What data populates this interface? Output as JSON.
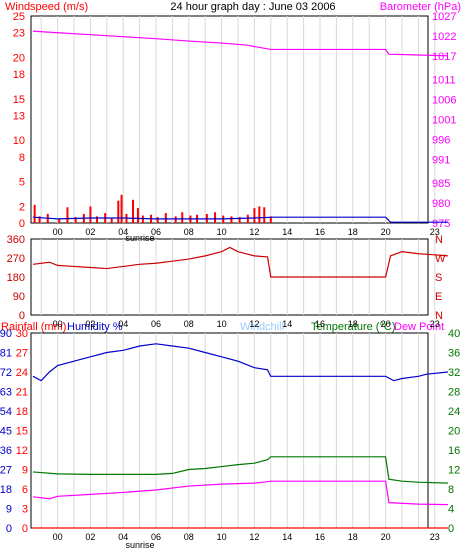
{
  "header": {
    "windspeed_label": "Windspeed (m/s)",
    "title": "24 hour graph day : June 03 2006",
    "barometer_label": "Barometer (hPa)"
  },
  "labels": {
    "sunrise": "sunrise",
    "rainfall": "Rainfall (mm)",
    "humidity": "Humidity %",
    "windchill": "Windchill",
    "temperature": "Temperature (°C)",
    "dewpoint": "Dew Point"
  },
  "colors": {
    "wind": "#ff0000",
    "barometer": "#ff00ff",
    "direction": "#cc0000",
    "humidity": "#0000cc",
    "temperature": "#007700",
    "dewpoint": "#ff00ff",
    "windchill": "#99ccff",
    "rainfall": "#ff0000",
    "grid": "#d8d8d8"
  },
  "chart_data": [
    {
      "type": "line",
      "panel": "wind-barometer",
      "title": "24 hour graph day : June 03 2006",
      "x_ticks": [
        "00",
        "02",
        "04",
        "06",
        "08",
        "10",
        "12",
        "14",
        "16",
        "18",
        "20",
        "23"
      ],
      "y_left": {
        "label": "Windspeed (m/s)",
        "ticks": [
          0,
          2,
          5,
          8,
          10,
          13,
          15,
          18,
          20,
          23,
          25
        ],
        "range": [
          0,
          25
        ]
      },
      "y_right": {
        "label": "Barometer (hPa)",
        "ticks": [
          975,
          980,
          985,
          991,
          996,
          1001,
          1006,
          1011,
          1017,
          1022,
          1027
        ],
        "range": [
          975,
          1027
        ]
      },
      "series": [
        {
          "name": "Barometer (hPa)",
          "axis": "right",
          "points": [
            [
              -1.5,
              1023.2
            ],
            [
              0,
              1022.8
            ],
            [
              2,
              1022.3
            ],
            [
              4,
              1021.8
            ],
            [
              6,
              1021.3
            ],
            [
              8,
              1020.7
            ],
            [
              10,
              1020.2
            ],
            [
              11.5,
              1019.7
            ],
            [
              13,
              1018.6
            ],
            [
              20,
              1018.6
            ],
            [
              20.2,
              1017.4
            ],
            [
              22,
              1017.2
            ],
            [
              23.8,
              1017.0
            ]
          ]
        },
        {
          "name": "Windspeed (m/s)",
          "axis": "left",
          "style": "bars",
          "points": [
            [
              -1.4,
              2.2
            ],
            [
              -1.1,
              0.8
            ],
            [
              -0.6,
              1.1
            ],
            [
              0.1,
              0.5
            ],
            [
              0.6,
              1.9
            ],
            [
              1.1,
              0.7
            ],
            [
              1.6,
              1.1
            ],
            [
              2.0,
              2.0
            ],
            [
              2.4,
              0.8
            ],
            [
              2.9,
              1.2
            ],
            [
              3.3,
              0.6
            ],
            [
              3.7,
              2.7
            ],
            [
              3.9,
              3.4
            ],
            [
              4.2,
              1.1
            ],
            [
              4.6,
              2.8
            ],
            [
              4.9,
              1.8
            ],
            [
              5.2,
              0.9
            ],
            [
              5.7,
              1.0
            ],
            [
              6.1,
              0.7
            ],
            [
              6.6,
              1.2
            ],
            [
              7.2,
              0.8
            ],
            [
              7.6,
              1.3
            ],
            [
              8.1,
              0.9
            ],
            [
              8.5,
              1.0
            ],
            [
              9.1,
              1.1
            ],
            [
              9.6,
              1.3
            ],
            [
              10.1,
              0.9
            ],
            [
              10.6,
              0.8
            ],
            [
              11.1,
              0.7
            ],
            [
              11.6,
              1.0
            ],
            [
              12.0,
              1.8
            ],
            [
              12.3,
              2.0
            ],
            [
              12.6,
              1.9
            ],
            [
              13.0,
              0.8
            ]
          ]
        },
        {
          "name": "Wind average (m/s)",
          "axis": "left",
          "points": [
            [
              -1.5,
              0.7
            ],
            [
              0,
              0.5
            ],
            [
              2,
              0.6
            ],
            [
              4,
              0.6
            ],
            [
              6,
              0.5
            ],
            [
              8,
              0.5
            ],
            [
              10,
              0.5
            ],
            [
              12,
              0.6
            ],
            [
              13.1,
              0.7
            ],
            [
              20,
              0.7
            ],
            [
              20.3,
              0.1
            ],
            [
              23.8,
              0.1
            ]
          ]
        }
      ]
    },
    {
      "type": "line",
      "panel": "wind-direction",
      "x_ticks": [
        "00",
        "02",
        "04",
        "06",
        "08",
        "10",
        "12",
        "14",
        "16",
        "18",
        "20",
        "23"
      ],
      "y_left": {
        "ticks": [
          0,
          90,
          180,
          270,
          360
        ],
        "range": [
          0,
          360
        ]
      },
      "y_right": {
        "ticks": [
          "N",
          "W",
          "S",
          "E",
          "N"
        ]
      },
      "series": [
        {
          "name": "Wind direction",
          "points": [
            [
              -1.5,
              240
            ],
            [
              -0.5,
              250
            ],
            [
              0,
              235
            ],
            [
              1,
              230
            ],
            [
              2,
              225
            ],
            [
              3,
              220
            ],
            [
              4,
              230
            ],
            [
              5,
              240
            ],
            [
              6,
              245
            ],
            [
              7,
              255
            ],
            [
              8,
              265
            ],
            [
              9,
              280
            ],
            [
              10,
              300
            ],
            [
              10.5,
              320
            ],
            [
              11,
              300
            ],
            [
              12,
              280
            ],
            [
              12.8,
              275
            ],
            [
              13,
              180
            ],
            [
              20,
              180
            ],
            [
              20.3,
              280
            ],
            [
              21,
              300
            ],
            [
              22,
              290
            ],
            [
              23,
              285
            ],
            [
              23.8,
              280
            ]
          ]
        }
      ]
    },
    {
      "type": "line",
      "panel": "temperature-humidity",
      "x_ticks": [
        "00",
        "02",
        "04",
        "06",
        "08",
        "10",
        "12",
        "14",
        "16",
        "18",
        "20",
        "23"
      ],
      "y_left": {
        "label": "Rainfall (mm) / Humidity %",
        "ticks": [
          0,
          9,
          18,
          27,
          36,
          45,
          54,
          63,
          72,
          81,
          90
        ],
        "range": [
          0,
          90
        ]
      },
      "y_left_rain": {
        "ticks": [
          0,
          3,
          6,
          9,
          12,
          15,
          18,
          21,
          24,
          27,
          30
        ],
        "range": [
          0,
          30
        ]
      },
      "y_right": {
        "label": "Temperature (°C) / Dew Point",
        "ticks": [
          0,
          4,
          8,
          12,
          16,
          20,
          24,
          28,
          32,
          36,
          40
        ],
        "range": [
          0,
          40
        ]
      },
      "series": [
        {
          "name": "Humidity %",
          "axis": "left",
          "points": [
            [
              -1.5,
              70
            ],
            [
              -1.0,
              68
            ],
            [
              -0.5,
              72
            ],
            [
              0,
              75
            ],
            [
              1,
              77
            ],
            [
              2,
              79
            ],
            [
              3,
              81
            ],
            [
              4,
              82
            ],
            [
              5,
              84
            ],
            [
              6,
              85
            ],
            [
              7,
              84
            ],
            [
              8,
              83
            ],
            [
              9,
              81
            ],
            [
              10,
              79
            ],
            [
              11,
              77
            ],
            [
              12,
              74
            ],
            [
              12.8,
              73
            ],
            [
              13,
              70
            ],
            [
              20,
              70
            ],
            [
              20.5,
              68
            ],
            [
              21,
              69
            ],
            [
              22,
              70
            ],
            [
              22.5,
              71
            ],
            [
              23.8,
              72
            ]
          ]
        },
        {
          "name": "Temperature (°C)",
          "axis": "right",
          "points": [
            [
              -1.5,
              11.5
            ],
            [
              0,
              11.1
            ],
            [
              2,
              11.0
            ],
            [
              4,
              11.0
            ],
            [
              6,
              11.0
            ],
            [
              7,
              11.2
            ],
            [
              8,
              12.0
            ],
            [
              9,
              12.2
            ],
            [
              10,
              12.6
            ],
            [
              11,
              13.0
            ],
            [
              12,
              13.3
            ],
            [
              12.8,
              14.0
            ],
            [
              13,
              14.6
            ],
            [
              20,
              14.6
            ],
            [
              20.2,
              10.0
            ],
            [
              21,
              9.6
            ],
            [
              22,
              9.4
            ],
            [
              23.8,
              9.2
            ]
          ]
        },
        {
          "name": "Dew Point",
          "axis": "right",
          "points": [
            [
              -1.5,
              6.4
            ],
            [
              -0.5,
              6.0
            ],
            [
              0,
              6.5
            ],
            [
              2,
              6.9
            ],
            [
              4,
              7.3
            ],
            [
              6,
              7.8
            ],
            [
              8,
              8.6
            ],
            [
              10,
              9.0
            ],
            [
              12,
              9.2
            ],
            [
              12.8,
              9.5
            ],
            [
              13,
              9.6
            ],
            [
              20,
              9.6
            ],
            [
              20.2,
              5.2
            ],
            [
              22,
              4.9
            ],
            [
              23.8,
              4.8
            ]
          ]
        },
        {
          "name": "Rainfall (mm)",
          "axis": "left_rain",
          "points": [
            [
              -1.5,
              0
            ],
            [
              23.8,
              0
            ]
          ]
        }
      ]
    }
  ]
}
